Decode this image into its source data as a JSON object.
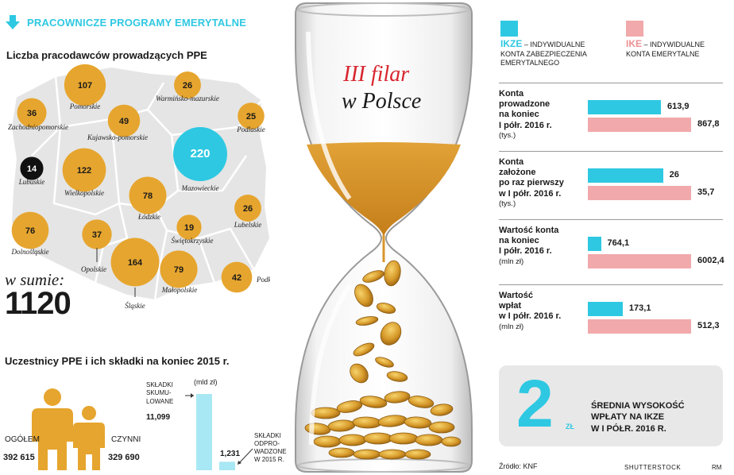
{
  "header": {
    "title": "PRACOWNICZE PROGRAMY EMERYTALNE"
  },
  "map": {
    "title": "Liczba pracodawców prowadzących PPE",
    "sum_label": "w sumie:",
    "sum_value": "1120",
    "regions": [
      {
        "name": "Pomorskie",
        "value": "107"
      },
      {
        "name": "Warmińsko-mazurskie",
        "value": "26"
      },
      {
        "name": "Zachodniopomorskie",
        "value": "36"
      },
      {
        "name": "Kujawsko-pomorskie",
        "value": "49"
      },
      {
        "name": "Podlaskie",
        "value": "25"
      },
      {
        "name": "Mazowieckie",
        "value": "220"
      },
      {
        "name": "Lubuskie",
        "value": "14"
      },
      {
        "name": "Wielkopolskie",
        "value": "122"
      },
      {
        "name": "Łódzkie",
        "value": "78"
      },
      {
        "name": "Lubelskie",
        "value": "26"
      },
      {
        "name": "Świętokrzyskie",
        "value": "19"
      },
      {
        "name": "Dolnośląskie",
        "value": "76"
      },
      {
        "name": "Opolskie",
        "value": "37"
      },
      {
        "name": "Śląskie",
        "value": "164"
      },
      {
        "name": "Małopolskie",
        "value": "79"
      },
      {
        "name": "Podkarpackie",
        "value": "42"
      }
    ]
  },
  "hourglass": {
    "title_line1": "III filar",
    "title_line2": "w Polsce"
  },
  "participants": {
    "title": "Uczestnicy PPE i ich składki na koniec 2015 r.",
    "total_label": "OGÓŁEM",
    "total_value": "392 615",
    "active_label": "CZYNNI",
    "active_value": "329 690",
    "unit": "(mld zł)",
    "accum_label_lines": [
      "SKŁADKI",
      "SKUMU-",
      "LOWANE"
    ],
    "accum_value": "11,099",
    "paid_label_lines": [
      "SKŁADKI",
      "ODPRO-",
      "WADZONE",
      "W 2015 R."
    ],
    "paid_value": "1,231",
    "accum_num": 11.099,
    "paid_num": 1.231
  },
  "legend": {
    "ikze_abbr": "IKZE",
    "ikze_desc_lines": [
      " – INDYWIDUALNE",
      "KONTA ZABEZPIECZENIA",
      "EMERYTALNEGO"
    ],
    "ike_abbr": "IKE",
    "ike_desc_lines": [
      " – INDYWIDUALNE",
      "KONTA EMERYTALNE"
    ],
    "ikze_color": "#2ec8e2",
    "ike_color": "#f1a9ab"
  },
  "chart_data": {
    "type": "bar",
    "series": [
      {
        "name": "IKZE",
        "values": [
          613.9,
          26,
          764.1,
          173.1
        ]
      },
      {
        "name": "IKE",
        "values": [
          867.8,
          35.7,
          6002.4,
          512.3
        ]
      }
    ],
    "groups": [
      {
        "label_lines": [
          "Konta",
          "prowadzone",
          "na koniec",
          "I półr. 2016 r."
        ],
        "unit": "(tys.)",
        "ikze": "613,9",
        "ike": "867,8",
        "ikze_num": 613.9,
        "ike_num": 867.8
      },
      {
        "label_lines": [
          "Konta",
          "założone",
          "po raz pierwszy",
          "w I półr. 2016 r."
        ],
        "unit": "(tys.)",
        "ikze": "26",
        "ike": "35,7",
        "ikze_num": 26,
        "ike_num": 35.7
      },
      {
        "label_lines": [
          "Wartość konta",
          "na koniec",
          "I półr. 2016 r."
        ],
        "unit": "(mln zł)",
        "ikze": "764,1",
        "ike": "6002,4",
        "ikze_num": 764.1,
        "ike_num": 6002.4
      },
      {
        "label_lines": [
          "Wartość",
          "wpłat",
          "w I półr. 2016 r."
        ],
        "unit": "(mln zł)",
        "ikze": "173,1",
        "ike": "512,3",
        "ikze_num": 173.1,
        "ike_num": 512.3
      }
    ]
  },
  "average": {
    "value": "2",
    "unit": "ZŁ",
    "text_lines": [
      "ŚREDNIA WYSOKOŚĆ",
      "WPŁATY NA IKZE",
      "W I PÓŁR. 2016 R."
    ]
  },
  "footer": {
    "source": "Źródło: KNF",
    "credit": "SHUTTERSTOCK",
    "initials": "RM"
  }
}
